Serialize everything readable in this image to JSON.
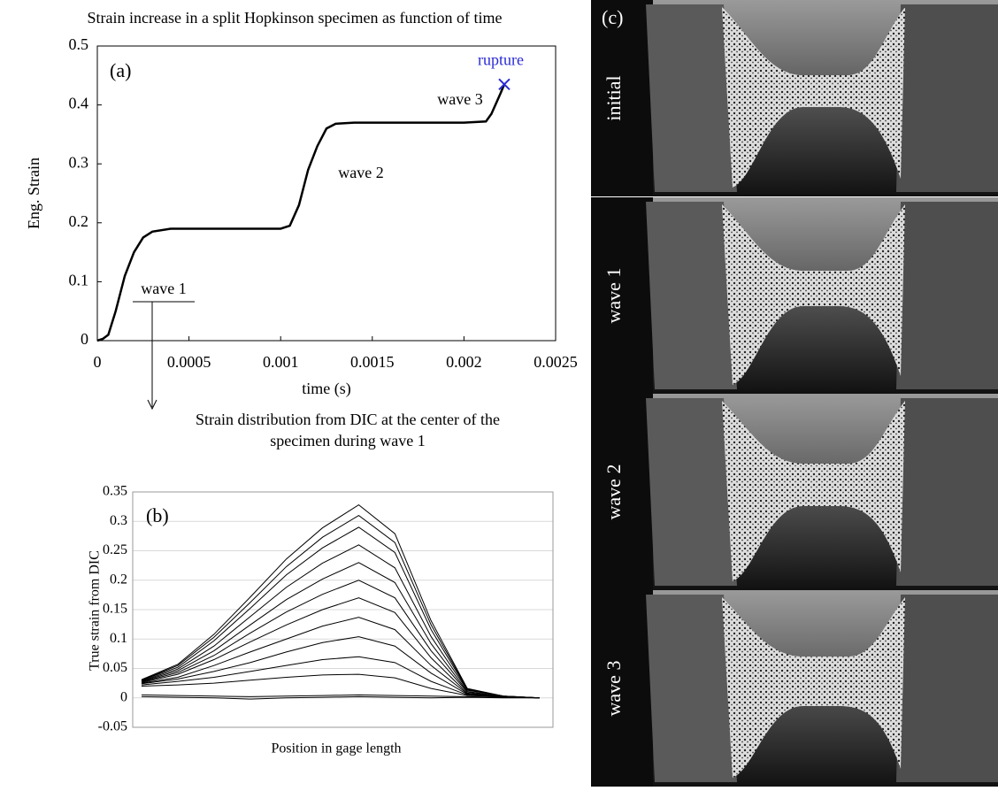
{
  "chart_data": [
    {
      "type": "line",
      "title": "Strain increase in a split Hopkinson specimen as function of time",
      "panel_label": "(a)",
      "xlabel": "time (s)",
      "ylabel": "Eng. Strain",
      "x": [
        0,
        3e-05,
        6e-05,
        0.0001,
        0.00015,
        0.0002,
        0.00025,
        0.0003,
        0.0004,
        0.0006,
        0.0008,
        0.001,
        0.00105,
        0.0011,
        0.00115,
        0.0012,
        0.00125,
        0.0013,
        0.0014,
        0.0016,
        0.0018,
        0.002,
        0.00212,
        0.00215,
        0.0022,
        0.00222
      ],
      "values": [
        0,
        0.003,
        0.01,
        0.05,
        0.11,
        0.15,
        0.175,
        0.185,
        0.19,
        0.19,
        0.19,
        0.19,
        0.195,
        0.23,
        0.29,
        0.33,
        0.36,
        0.368,
        0.37,
        0.37,
        0.37,
        0.37,
        0.372,
        0.385,
        0.42,
        0.435
      ],
      "color": "#000000",
      "xlim": [
        0,
        0.0025
      ],
      "ylim": [
        0,
        0.5
      ],
      "xticks": [
        0,
        0.0005,
        0.001,
        0.0015,
        0.002,
        0.0025
      ],
      "yticks": [
        0,
        0.1,
        0.2,
        0.3,
        0.4,
        0.5
      ],
      "grid": false,
      "marker": {
        "x": 0.00222,
        "y": 0.435,
        "label": "rupture",
        "color": "#2a2ad6"
      },
      "annotations": [
        "wave 1",
        "wave 2",
        "wave 3"
      ]
    },
    {
      "type": "line",
      "title": [
        "Strain distribution from DIC at the center of the",
        "specimen during wave 1"
      ],
      "panel_label": "(b)",
      "xlabel": "Position in gage length",
      "ylabel": "True strain from DIC",
      "categories": [
        null,
        null,
        null,
        null,
        null,
        null,
        null,
        null,
        null,
        null,
        null,
        null
      ],
      "ylim": [
        -0.05,
        0.35
      ],
      "yticks": [
        -0.05,
        0,
        0.05,
        0.1,
        0.15,
        0.2,
        0.25,
        0.3,
        0.35
      ],
      "grid": true,
      "series": [
        {
          "color": "#000000",
          "values": [
            0.005,
            0.004,
            0.003,
            0.002,
            0.003,
            0.004,
            0.005,
            0.004,
            0.003,
            0.002,
            0.001,
            0
          ]
        },
        {
          "color": "#000000",
          "values": [
            0.002,
            0.001,
            0,
            -0.002,
            0,
            0.001,
            0.002,
            0.001,
            0,
            0.001,
            0,
            0
          ]
        },
        {
          "color": "#000000",
          "values": [
            0.02,
            0.022,
            0.025,
            0.03,
            0.035,
            0.039,
            0.04,
            0.034,
            0.016,
            0.004,
            0.002,
            0
          ]
        },
        {
          "color": "#000000",
          "values": [
            0.022,
            0.028,
            0.035,
            0.045,
            0.055,
            0.065,
            0.07,
            0.06,
            0.028,
            0.005,
            0.002,
            0
          ]
        },
        {
          "color": "#000000",
          "values": [
            0.024,
            0.032,
            0.045,
            0.06,
            0.078,
            0.094,
            0.104,
            0.088,
            0.042,
            0.006,
            0.002,
            0
          ]
        },
        {
          "color": "#000000",
          "values": [
            0.025,
            0.035,
            0.055,
            0.078,
            0.1,
            0.122,
            0.137,
            0.116,
            0.055,
            0.007,
            0.002,
            0
          ]
        },
        {
          "color": "#000000",
          "values": [
            0.026,
            0.04,
            0.065,
            0.095,
            0.124,
            0.15,
            0.17,
            0.145,
            0.068,
            0.008,
            0.002,
            0
          ]
        },
        {
          "color": "#000000",
          "values": [
            0.027,
            0.043,
            0.072,
            0.11,
            0.146,
            0.176,
            0.2,
            0.17,
            0.08,
            0.01,
            0.002,
            0
          ]
        },
        {
          "color": "#000000",
          "values": [
            0.028,
            0.046,
            0.08,
            0.124,
            0.167,
            0.202,
            0.23,
            0.196,
            0.092,
            0.011,
            0.002,
            0
          ]
        },
        {
          "color": "#000000",
          "values": [
            0.029,
            0.049,
            0.088,
            0.138,
            0.188,
            0.229,
            0.26,
            0.221,
            0.104,
            0.013,
            0.003,
            0
          ]
        },
        {
          "color": "#000000",
          "values": [
            0.03,
            0.052,
            0.097,
            0.152,
            0.209,
            0.255,
            0.29,
            0.247,
            0.116,
            0.014,
            0.003,
            0
          ]
        },
        {
          "color": "#000000",
          "values": [
            0.03,
            0.055,
            0.103,
            0.162,
            0.223,
            0.273,
            0.31,
            0.264,
            0.124,
            0.015,
            0.003,
            0
          ]
        },
        {
          "color": "#000000",
          "values": [
            0.031,
            0.057,
            0.108,
            0.171,
            0.236,
            0.289,
            0.328,
            0.279,
            0.131,
            0.016,
            0.003,
            0
          ]
        }
      ]
    }
  ],
  "panel_c": {
    "label": "(c)",
    "frames": [
      "initial",
      "wave 1",
      "wave 2",
      "wave 3"
    ]
  }
}
